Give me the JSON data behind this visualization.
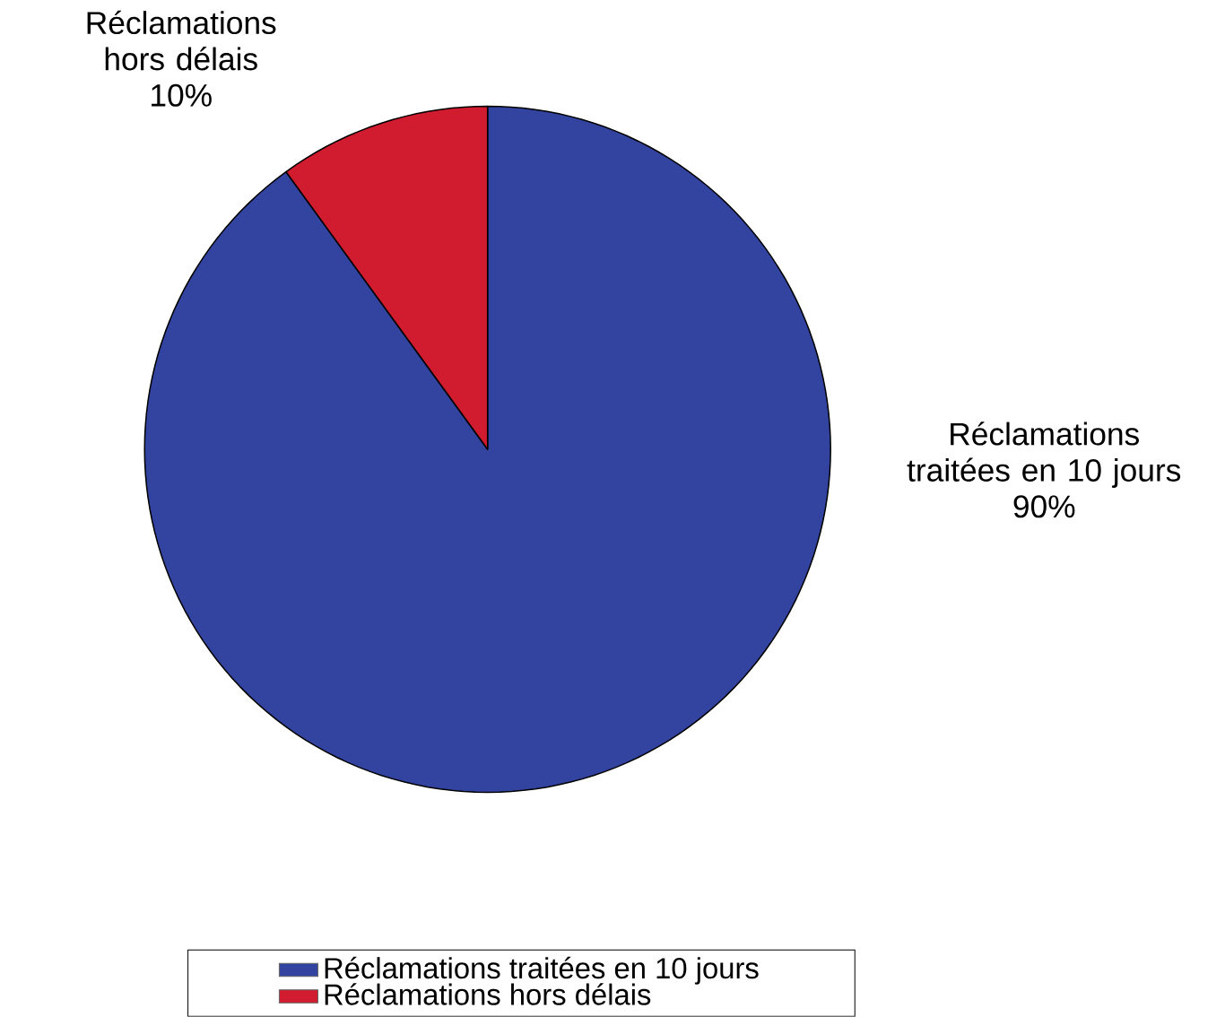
{
  "chart_data": {
    "type": "pie",
    "categories": [
      "Réclamations traitées en 10 jours",
      "Réclamations hors délais"
    ],
    "values": [
      90,
      10
    ],
    "colors": [
      "#3344a0",
      "#d01c2e"
    ],
    "value_labels": [
      "90%",
      "10%"
    ],
    "legend": "bottom"
  }
}
